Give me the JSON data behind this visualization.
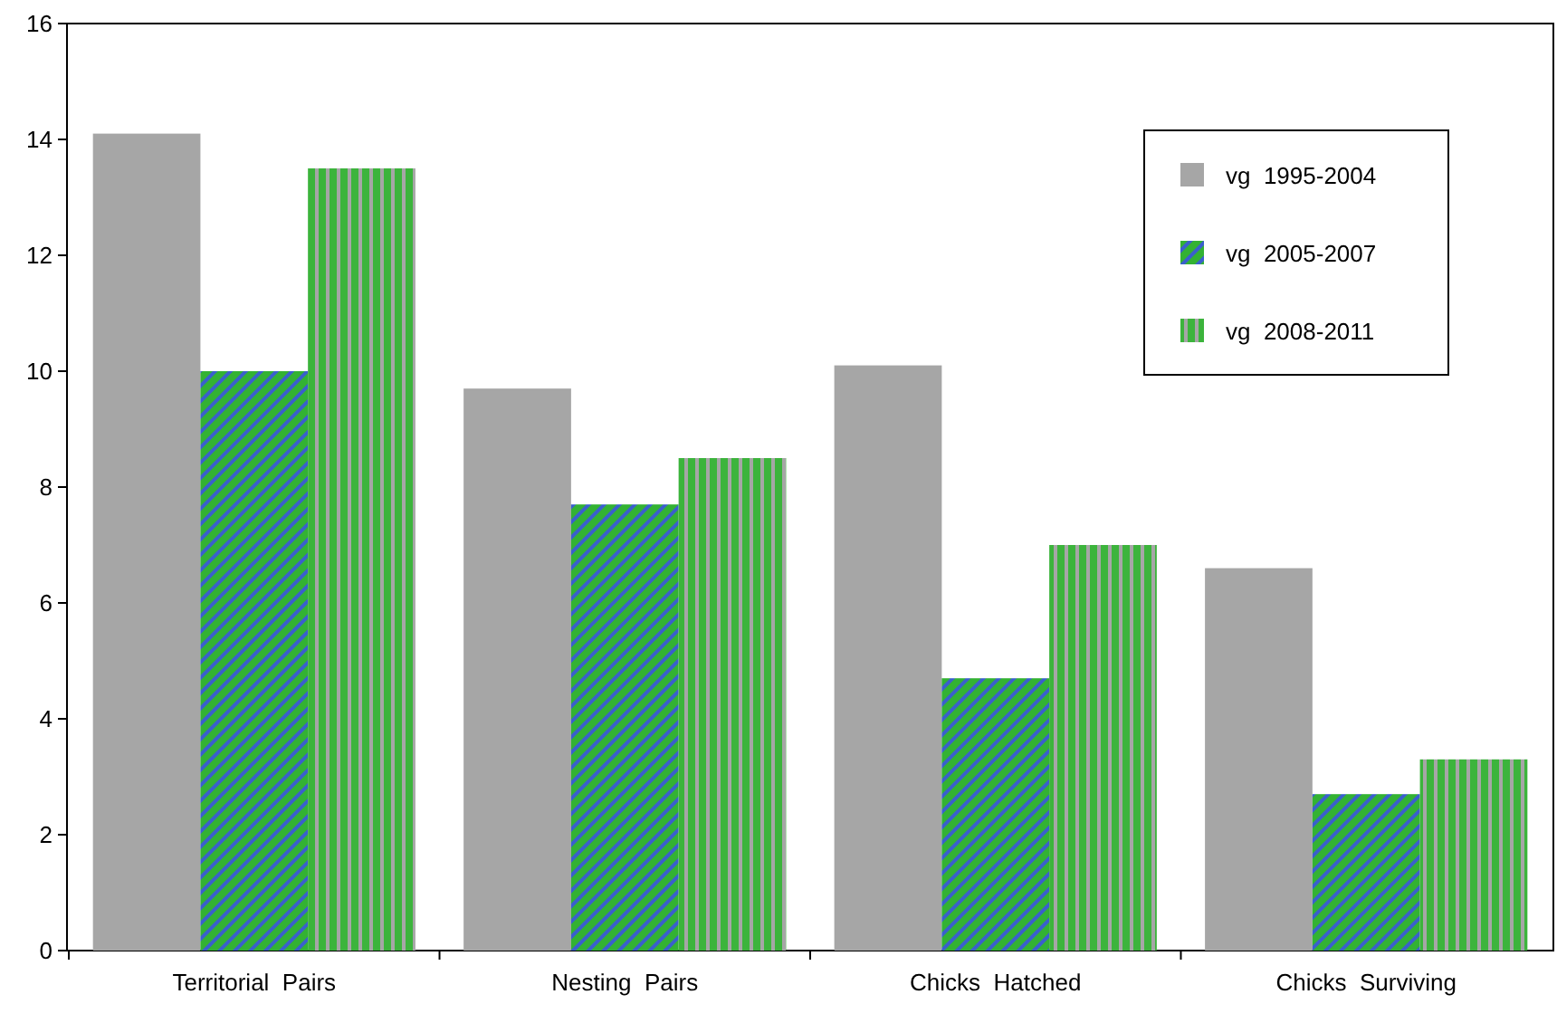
{
  "chart_data": {
    "type": "bar",
    "categories": [
      "Territorial  Pairs",
      "Nesting  Pairs",
      "Chicks  Hatched",
      "Chicks  Surviving"
    ],
    "series": [
      {
        "name": "vg  1995-2004",
        "color": "#a6a6a6",
        "values": [
          14.1,
          9.7,
          10.1,
          6.6
        ]
      },
      {
        "name": "vg  2005-2007",
        "color": "#33b233",
        "values": [
          10,
          7.7,
          4.7,
          2.7
        ]
      },
      {
        "name": "vg  2008-2011",
        "color": "#3cb43c",
        "values": [
          13.5,
          8.5,
          7,
          3.3
        ]
      }
    ],
    "ylim": [
      0,
      16
    ],
    "yticks": [
      0,
      2,
      4,
      6,
      8,
      10,
      12,
      14,
      16
    ],
    "grid": false,
    "legend": "top right"
  }
}
